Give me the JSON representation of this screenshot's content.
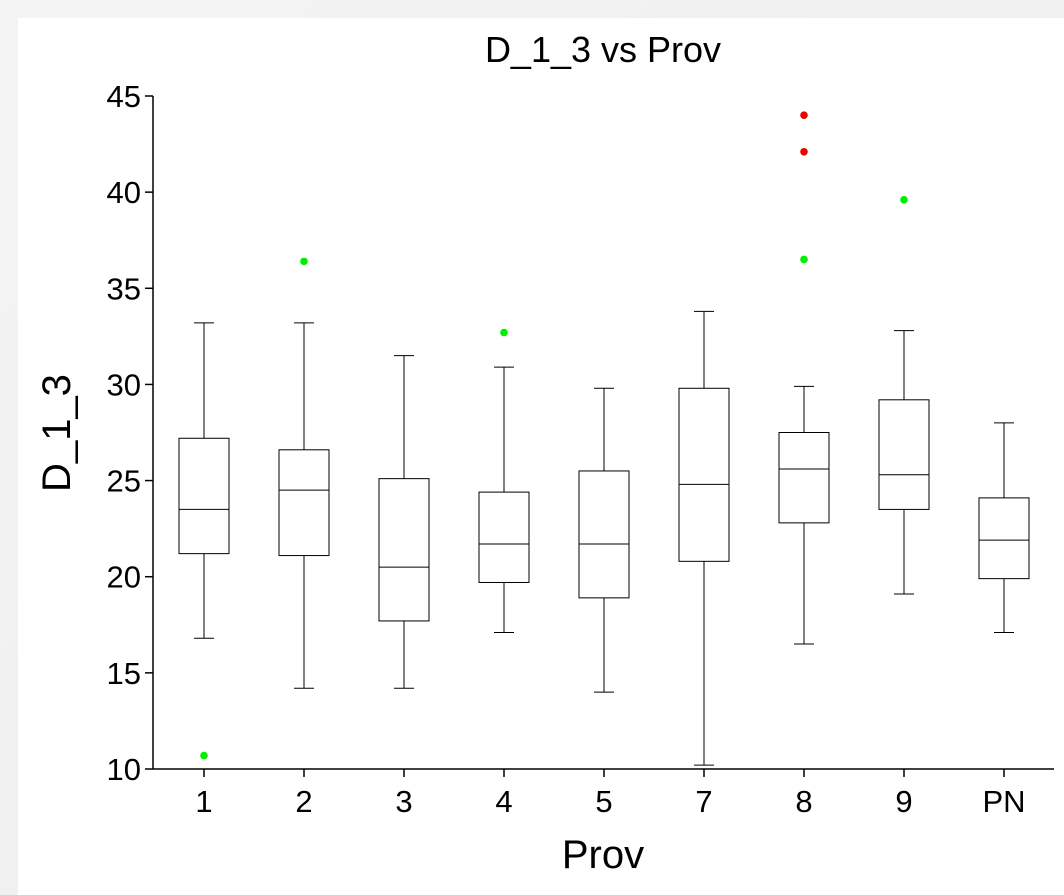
{
  "chart_data": {
    "type": "box",
    "title": "D_1_3 vs Prov",
    "xlabel": "Prov",
    "ylabel": "D_1_3",
    "ylim": [
      10,
      45
    ],
    "yticks": [
      10,
      15,
      20,
      25,
      30,
      35,
      40,
      45
    ],
    "categories": [
      "1",
      "2",
      "3",
      "4",
      "5",
      "7",
      "8",
      "9",
      "PN"
    ],
    "boxes": [
      {
        "category": "1",
        "whisker_low": 16.8,
        "q1": 21.2,
        "median": 23.5,
        "q3": 27.2,
        "whisker_high": 33.2,
        "outliers": [
          {
            "value": 10.7,
            "color": "#00ee00"
          }
        ]
      },
      {
        "category": "2",
        "whisker_low": 14.2,
        "q1": 21.1,
        "median": 24.5,
        "q3": 26.6,
        "whisker_high": 33.2,
        "outliers": [
          {
            "value": 36.4,
            "color": "#00ee00"
          }
        ]
      },
      {
        "category": "3",
        "whisker_low": 14.2,
        "q1": 17.7,
        "median": 20.5,
        "q3": 25.1,
        "whisker_high": 31.5,
        "outliers": []
      },
      {
        "category": "4",
        "whisker_low": 17.1,
        "q1": 19.7,
        "median": 21.7,
        "q3": 24.4,
        "whisker_high": 30.9,
        "outliers": [
          {
            "value": 32.7,
            "color": "#00ee00"
          }
        ]
      },
      {
        "category": "5",
        "whisker_low": 14.0,
        "q1": 18.9,
        "median": 21.7,
        "q3": 25.5,
        "whisker_high": 29.8,
        "outliers": []
      },
      {
        "category": "7",
        "whisker_low": 10.2,
        "q1": 20.8,
        "median": 24.8,
        "q3": 29.8,
        "whisker_high": 33.8,
        "outliers": []
      },
      {
        "category": "8",
        "whisker_low": 16.5,
        "q1": 22.8,
        "median": 25.6,
        "q3": 27.5,
        "whisker_high": 29.9,
        "outliers": [
          {
            "value": 36.5,
            "color": "#00ee00"
          },
          {
            "value": 42.1,
            "color": "#ee0000"
          },
          {
            "value": 44.0,
            "color": "#ee0000"
          }
        ]
      },
      {
        "category": "9",
        "whisker_low": 19.1,
        "q1": 23.5,
        "median": 25.3,
        "q3": 29.2,
        "whisker_high": 32.8,
        "outliers": [
          {
            "value": 39.6,
            "color": "#00ee00"
          }
        ]
      },
      {
        "category": "PN",
        "whisker_low": 17.1,
        "q1": 19.9,
        "median": 21.9,
        "q3": 24.1,
        "whisker_high": 28.0,
        "outliers": []
      }
    ],
    "colors": {
      "box_stroke": "#000000",
      "mild_outlier": "#00ee00",
      "extreme_outlier": "#ee0000"
    },
    "grid": false,
    "legend": "none"
  }
}
